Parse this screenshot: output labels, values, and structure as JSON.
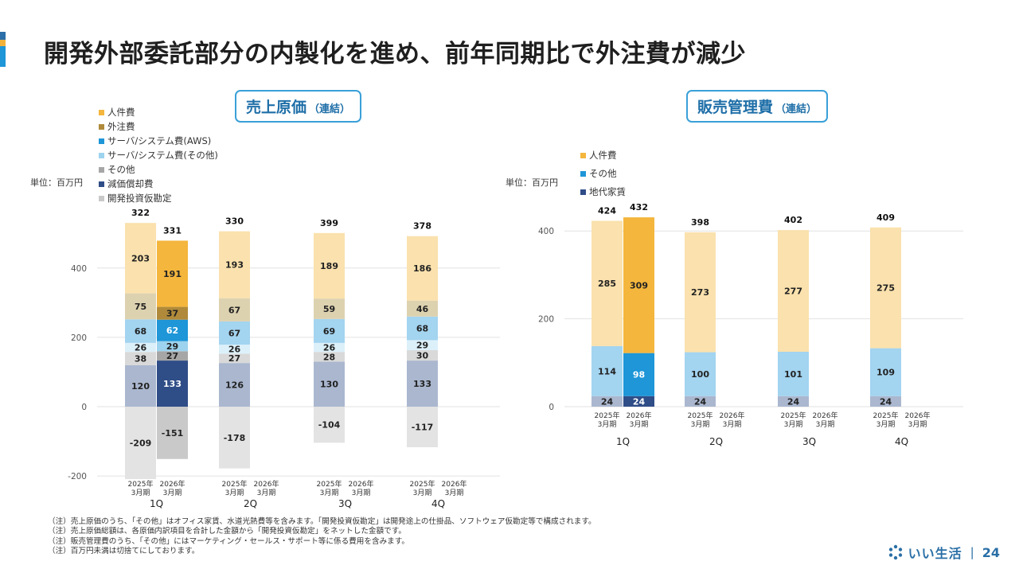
{
  "title": "開発外部委託部分の内製化を進め、前年同期比で外注費が減少",
  "charts": {
    "cogs": {
      "badge": "売上原価",
      "badge_suffix": "（連結）",
      "unit": "単位：百万円",
      "yticks": [
        -200,
        0,
        200,
        400
      ],
      "legend_order": [
        "人件費",
        "外注費",
        "サーバ/システム費(AWS)",
        "サーバ/システム費(その他)",
        "その他",
        "減価償却費",
        "開発投資仮勘定"
      ]
    },
    "sga": {
      "badge": "販売管理費",
      "badge_suffix": "（連結）",
      "unit": "単位：百万円",
      "yticks": [
        0,
        200,
        400
      ],
      "legend_order": [
        "人件費",
        "その他",
        "地代家賃"
      ]
    }
  },
  "chart_data": [
    {
      "type": "bar",
      "stacked": true,
      "title": "売上原価（連結）",
      "ylabel": "単位：百万円",
      "ylim": [
        -230,
        530
      ],
      "quarters": [
        "1Q",
        "2Q",
        "3Q",
        "4Q"
      ],
      "periods": [
        "2025年\n3月期",
        "2026年\n3月期"
      ],
      "categories": [
        "1Q 2025年3月期",
        "1Q 2026年3月期",
        "2Q 2025年3月期",
        "2Q 2026年3月期",
        "3Q 2025年3月期",
        "3Q 2026年3月期",
        "4Q 2025年3月期",
        "4Q 2026年3月期"
      ],
      "totals": [
        322,
        331,
        330,
        null,
        399,
        null,
        378,
        null
      ],
      "series": [
        {
          "name": "開発投資仮勘定",
          "values": [
            -209,
            -151,
            -178,
            null,
            -104,
            null,
            -117,
            null
          ],
          "color_prev": "#e3e3e3",
          "color_curr": "#c9c9c9"
        },
        {
          "name": "減価償却費",
          "values": [
            120,
            133,
            126,
            null,
            130,
            null,
            133,
            null
          ],
          "color_prev": "#aab7cf",
          "color_curr": "#2f4d87"
        },
        {
          "name": "その他",
          "values": [
            38,
            27,
            27,
            null,
            28,
            null,
            30,
            null
          ],
          "color_prev": "#d9d9d9",
          "color_curr": "#a6a6a6"
        },
        {
          "name": "サーバ/システム費(その他)",
          "values": [
            26,
            29,
            26,
            null,
            26,
            null,
            29,
            null
          ],
          "color_prev": "#dcf0fa",
          "color_curr": "#9dd3ee"
        },
        {
          "name": "サーバ/システム費(AWS)",
          "values": [
            68,
            62,
            67,
            null,
            69,
            null,
            68,
            null
          ],
          "color_prev": "#a3d4f0",
          "color_curr": "#1e96d8"
        },
        {
          "name": "外注費",
          "values": [
            75,
            37,
            67,
            null,
            59,
            null,
            46,
            null
          ],
          "color_prev": "#ddd2b0",
          "color_curr": "#b08a3a"
        },
        {
          "name": "人件費",
          "values": [
            203,
            191,
            193,
            null,
            189,
            null,
            186,
            null
          ],
          "color_prev": "#fae1ad",
          "color_curr": "#f4b63d"
        }
      ],
      "legend_colors": {
        "人件費": "#f4b63d",
        "外注費": "#b08a3a",
        "サーバ/システム費(AWS)": "#1e96d8",
        "サーバ/システム費(その他)": "#9dd3ee",
        "その他": "#a6a6a6",
        "減価償却費": "#2f4d87",
        "開発投資仮勘定": "#c9c9c9"
      },
      "grid": true,
      "legend_placement": "top-left"
    },
    {
      "type": "bar",
      "stacked": true,
      "title": "販売管理費（連結）",
      "ylabel": "単位：百万円",
      "ylim": [
        0,
        430
      ],
      "quarters": [
        "1Q",
        "2Q",
        "3Q",
        "4Q"
      ],
      "periods": [
        "2025年\n3月期",
        "2026年\n3月期"
      ],
      "categories": [
        "1Q 2025年3月期",
        "1Q 2026年3月期",
        "2Q 2025年3月期",
        "2Q 2026年3月期",
        "3Q 2025年3月期",
        "3Q 2026年3月期",
        "4Q 2025年3月期",
        "4Q 2026年3月期"
      ],
      "totals": [
        424,
        432,
        398,
        null,
        402,
        null,
        409,
        null
      ],
      "series": [
        {
          "name": "地代家賃",
          "values": [
            24,
            24,
            24,
            null,
            24,
            null,
            24,
            null
          ],
          "color_prev": "#aab7cf",
          "color_curr": "#2f4d87"
        },
        {
          "name": "その他",
          "values": [
            114,
            98,
            100,
            null,
            101,
            null,
            109,
            null
          ],
          "color_prev": "#a3d4f0",
          "color_curr": "#1e96d8"
        },
        {
          "name": "人件費",
          "values": [
            285,
            309,
            273,
            null,
            277,
            null,
            275,
            null
          ],
          "color_prev": "#fae1ad",
          "color_curr": "#f4b63d"
        }
      ],
      "legend_colors": {
        "人件費": "#f4b63d",
        "その他": "#1e96d8",
        "地代家賃": "#2f4d87"
      },
      "grid": true,
      "legend_placement": "top-left"
    }
  ],
  "notes": [
    "（注）売上原価のうち、「その他」はオフィス家賃、水道光熱費等を含みます。「開発投資仮勘定」は開発途上の仕掛品、ソフトウェア仮勘定等で構成されます。",
    "（注）売上原価総額は、各原価内訳項目を合計した金額から「開発投資仮勘定」をネットした金額です。",
    "（注）販売管理費のうち、「その他」にはマーケティング・セールス・サポート等に係る費用を含みます。",
    "（注）百万円未満は切捨てにしております。"
  ],
  "footer": {
    "brand": "いい生活",
    "separator": "|",
    "page": "24"
  },
  "accent_colors": [
    "#2b6ea8",
    "#f2b23a",
    "#1e96d8"
  ]
}
